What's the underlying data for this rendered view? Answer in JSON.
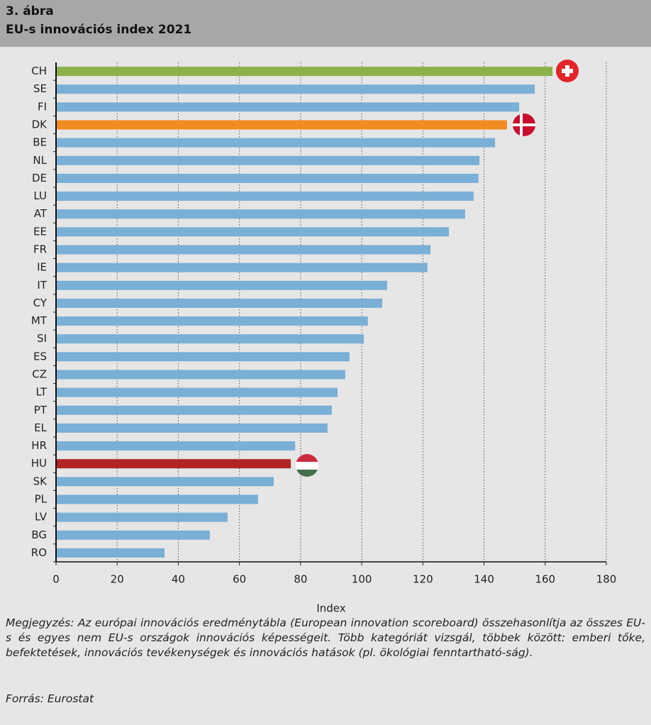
{
  "header": {
    "figure": "3. ábra",
    "title": "EU-s innovációs index 2021"
  },
  "chart_data": {
    "type": "bar",
    "orientation": "horizontal",
    "categories": [
      "CH",
      "SE",
      "FI",
      "DK",
      "BE",
      "NL",
      "DE",
      "LU",
      "AT",
      "EE",
      "FR",
      "IE",
      "IT",
      "CY",
      "MT",
      "SI",
      "ES",
      "CZ",
      "LT",
      "PT",
      "EL",
      "HR",
      "HU",
      "SK",
      "PL",
      "LV",
      "BG",
      "RO"
    ],
    "values": [
      162.4,
      156.6,
      151.5,
      147.5,
      143.6,
      138.5,
      138.2,
      136.6,
      133.8,
      128.5,
      122.5,
      121.5,
      108.3,
      106.7,
      102,
      100.7,
      96,
      94.6,
      92.1,
      90.2,
      88.8,
      78.2,
      76.8,
      71.2,
      66.1,
      56.1,
      50.3,
      35.5
    ],
    "colors": [
      "#8db14b",
      "#7aafd6",
      "#7aafd6",
      "#f28a22",
      "#7aafd6",
      "#7aafd6",
      "#7aafd6",
      "#7aafd6",
      "#7aafd6",
      "#7aafd6",
      "#7aafd6",
      "#7aafd6",
      "#7aafd6",
      "#7aafd6",
      "#7aafd6",
      "#7aafd6",
      "#7aafd6",
      "#7aafd6",
      "#7aafd6",
      "#7aafd6",
      "#7aafd6",
      "#7aafd6",
      "#b22424",
      "#7aafd6",
      "#7aafd6",
      "#7aafd6",
      "#7aafd6",
      "#7aafd6"
    ],
    "xlabel": "Index",
    "xlim": [
      0,
      180
    ],
    "xticks": [
      0,
      20,
      40,
      60,
      80,
      100,
      120,
      140,
      160,
      180
    ],
    "grid": true
  },
  "footer": {
    "note": "Megjegyzés: Az európai innovációs eredménytábla (European innovation scoreboard) összehasonlítja az összes EU-s és egyes nem EU-s országok innovációs képességeit. Több kategóriát vizsgál, többek között: emberi tőke, befektetések, innovációs tevékenységek és innovációs hatások (pl. ökológiai fenntartható-ság).",
    "source": "Forrás: Eurostat"
  }
}
